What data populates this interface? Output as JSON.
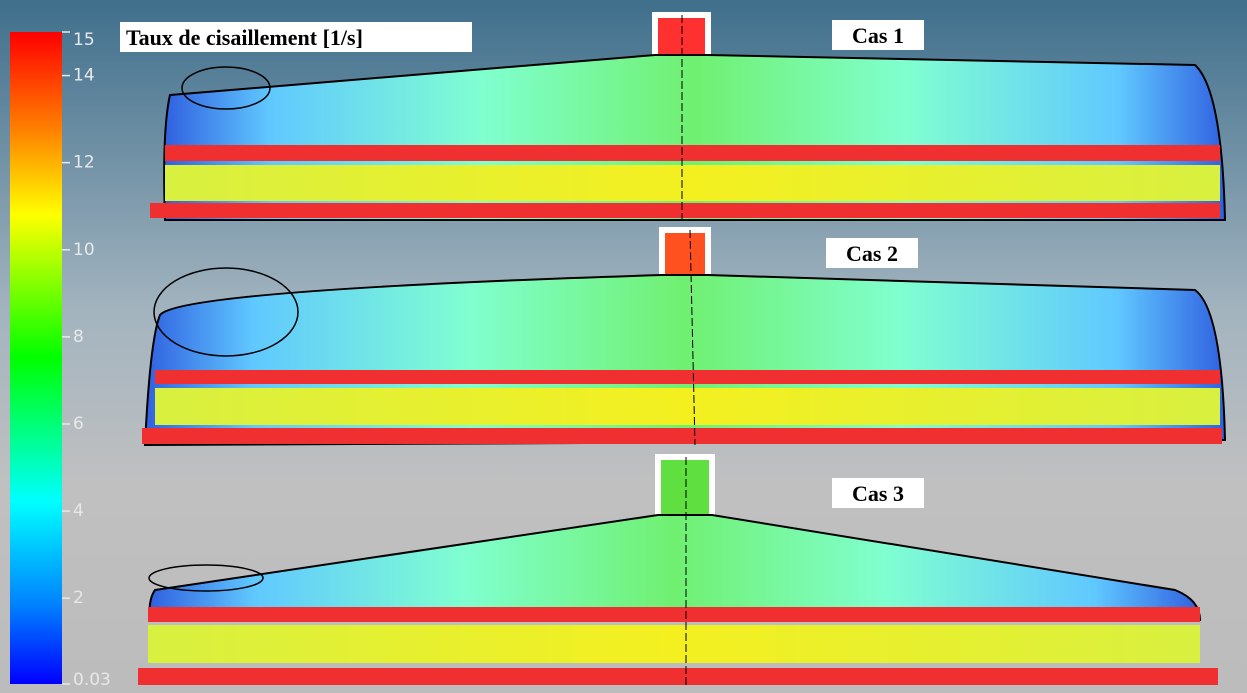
{
  "colorbar": {
    "title": "Taux de cisaillement [1/s]",
    "range": [
      0.03,
      15
    ],
    "ticks": [
      15,
      14,
      12,
      10,
      8,
      6,
      4,
      2,
      0.03
    ]
  },
  "cases": [
    {
      "label": "Cas 1"
    },
    {
      "label": "Cas 2"
    },
    {
      "label": "Cas 3"
    }
  ]
}
